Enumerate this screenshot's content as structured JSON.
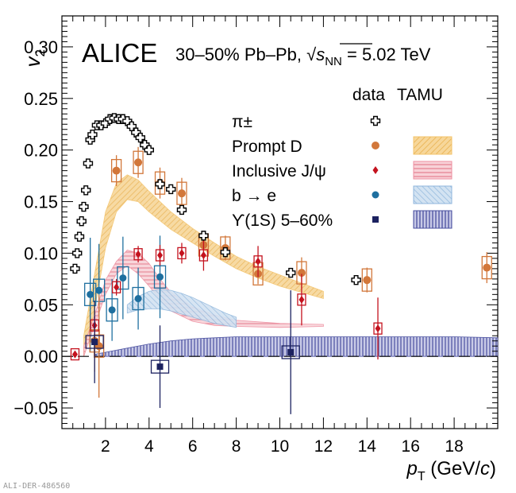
{
  "chart_data": {
    "type": "scatter",
    "title": "ALICE",
    "subtitle": "30–50% Pb–Pb, √s_NN = 5.02 TeV",
    "experiment": "ALICE",
    "system_prefix": "30–50% Pb–Pb, ",
    "energy_suffix": " = 5.02 TeV",
    "sqrt_symbol": "√",
    "s_letter": "s",
    "nn_subscript": "NN",
    "xlabel_prefix": "p",
    "xlabel_sub": "T",
    "xlabel_rest": " (GeV/",
    "xlabel_c": "c",
    "xlabel_end": ")",
    "ylabel_main": "v",
    "ylabel_sub": "2",
    "xlim": [
      0,
      20
    ],
    "ylim": [
      -0.07,
      0.33
    ],
    "xticks": [
      2,
      4,
      6,
      8,
      10,
      12,
      14,
      16,
      18
    ],
    "yticks": [
      -0.05,
      0.0,
      0.05,
      0.1,
      0.15,
      0.2,
      0.25,
      0.3
    ],
    "ytick_labels": [
      "−0.05",
      "0.00",
      "0.05",
      "0.10",
      "0.15",
      "0.20",
      "0.25",
      "0.30"
    ],
    "grid": false,
    "legend_position": "top-right",
    "legend_header_data": "data",
    "legend_header_model": "TAMU",
    "footer_id": "ALI-DER-486560",
    "colors": {
      "pion": "#000000",
      "promptD": "#d2773a",
      "jpsi": "#c4121e",
      "be": "#1e6f9f",
      "upsilon": "#1c2260",
      "promptD_band": "#f3c36a",
      "jpsi_band": "#ee8fa0",
      "be_band": "#8fb6dc",
      "upsilon_band": "#4a50a0"
    },
    "series": [
      {
        "name": "π±",
        "marker": "open-cross",
        "x": [
          0.6,
          0.7,
          0.8,
          0.9,
          1.0,
          1.1,
          1.2,
          1.3,
          1.4,
          1.6,
          1.8,
          2.0,
          2.2,
          2.4,
          2.6,
          2.8,
          3.0,
          3.2,
          3.4,
          3.6,
          3.8,
          4.0,
          4.5,
          5.0,
          5.5,
          6.5,
          7.5,
          10.5,
          13.5
        ],
        "y": [
          0.085,
          0.1,
          0.116,
          0.131,
          0.145,
          0.161,
          0.187,
          0.21,
          0.215,
          0.224,
          0.224,
          0.226,
          0.23,
          0.231,
          0.23,
          0.23,
          0.228,
          0.223,
          0.217,
          0.212,
          0.205,
          0.2,
          0.167,
          0.162,
          0.142,
          0.117,
          0.101,
          0.081,
          0.074
        ]
      },
      {
        "name": "Prompt D",
        "marker": "circle",
        "x": [
          1.5,
          1.7,
          2.5,
          3.5,
          4.5,
          5.5,
          6.5,
          7.5,
          9.0,
          11.0,
          14.0,
          19.5
        ],
        "y": [
          0.015,
          0.01,
          0.18,
          0.188,
          0.168,
          0.158,
          0.108,
          0.105,
          0.08,
          0.081,
          0.074,
          0.086
        ]
      },
      {
        "name": "Inclusive J/ψ",
        "marker": "diamond",
        "x": [
          0.6,
          1.5,
          2.5,
          3.5,
          4.5,
          5.5,
          6.5,
          9.0,
          11.0,
          14.5
        ],
        "y": [
          0.002,
          0.03,
          0.067,
          0.099,
          0.098,
          0.1,
          0.098,
          0.092,
          0.055,
          0.027
        ]
      },
      {
        "name": "b → e",
        "marker": "circle",
        "x": [
          1.3,
          1.7,
          2.3,
          2.8,
          3.5,
          4.5
        ],
        "y": [
          0.06,
          0.064,
          0.045,
          0.076,
          0.056,
          0.077
        ]
      },
      {
        "name": "ϒ(1S) 5–60%",
        "marker": "square",
        "x": [
          1.5,
          4.5,
          10.5
        ],
        "y": [
          0.014,
          -0.01,
          0.004
        ]
      }
    ],
    "bands": [
      {
        "name": "Prompt D",
        "x": [
          1.0,
          1.5,
          2.0,
          2.5,
          3.0,
          3.5,
          4.0,
          5.0,
          6.0,
          7.0,
          8.0,
          9.0,
          10.0,
          11.0,
          12.0
        ],
        "y_low": [
          0.0,
          0.045,
          0.105,
          0.14,
          0.152,
          0.15,
          0.14,
          0.123,
          0.11,
          0.097,
          0.085,
          0.076,
          0.068,
          0.062,
          0.056
        ],
        "y_high": [
          0.02,
          0.08,
          0.14,
          0.168,
          0.176,
          0.171,
          0.16,
          0.14,
          0.124,
          0.11,
          0.097,
          0.087,
          0.079,
          0.071,
          0.063
        ]
      },
      {
        "name": "Inclusive J/ψ",
        "x": [
          1.0,
          1.5,
          2.0,
          2.5,
          3.0,
          3.5,
          4.0,
          4.5,
          5.0,
          6.0,
          7.0,
          8.0,
          10.0,
          12.0
        ],
        "y_low": [
          0.0,
          0.03,
          0.06,
          0.08,
          0.088,
          0.08,
          0.068,
          0.055,
          0.044,
          0.034,
          0.03,
          0.029,
          0.028,
          0.029
        ],
        "y_high": [
          0.01,
          0.04,
          0.074,
          0.092,
          0.103,
          0.1,
          0.09,
          0.075,
          0.062,
          0.048,
          0.04,
          0.035,
          0.032,
          0.031
        ]
      },
      {
        "name": "b → e",
        "x": [
          3.0,
          3.5,
          4.0,
          4.5,
          5.0,
          5.5,
          6.0,
          6.5,
          7.0,
          7.5,
          8.0
        ],
        "y_low": [
          0.042,
          0.045,
          0.046,
          0.046,
          0.044,
          0.041,
          0.038,
          0.035,
          0.032,
          0.03,
          0.028
        ],
        "y_high": [
          0.05,
          0.058,
          0.063,
          0.065,
          0.064,
          0.061,
          0.057,
          0.052,
          0.047,
          0.042,
          0.038
        ]
      },
      {
        "name": "ϒ(1S) 5–60%",
        "x": [
          1.5,
          2.0,
          3.0,
          4.0,
          5.0,
          6.0,
          7.0,
          8.0,
          9.0,
          10.0,
          11.0,
          12.0,
          14.0,
          16.0,
          18.0,
          20.0
        ],
        "y_low": [
          0.0,
          0.0,
          0.0,
          0.0,
          0.0,
          0.0,
          0.0,
          0.0,
          0.0,
          0.0,
          0.0,
          0.0,
          0.0,
          0.0,
          0.0,
          0.0
        ],
        "y_high": [
          0.002,
          0.004,
          0.008,
          0.012,
          0.015,
          0.017,
          0.018,
          0.019,
          0.019,
          0.019,
          0.019,
          0.019,
          0.019,
          0.019,
          0.019,
          0.018
        ]
      }
    ]
  }
}
